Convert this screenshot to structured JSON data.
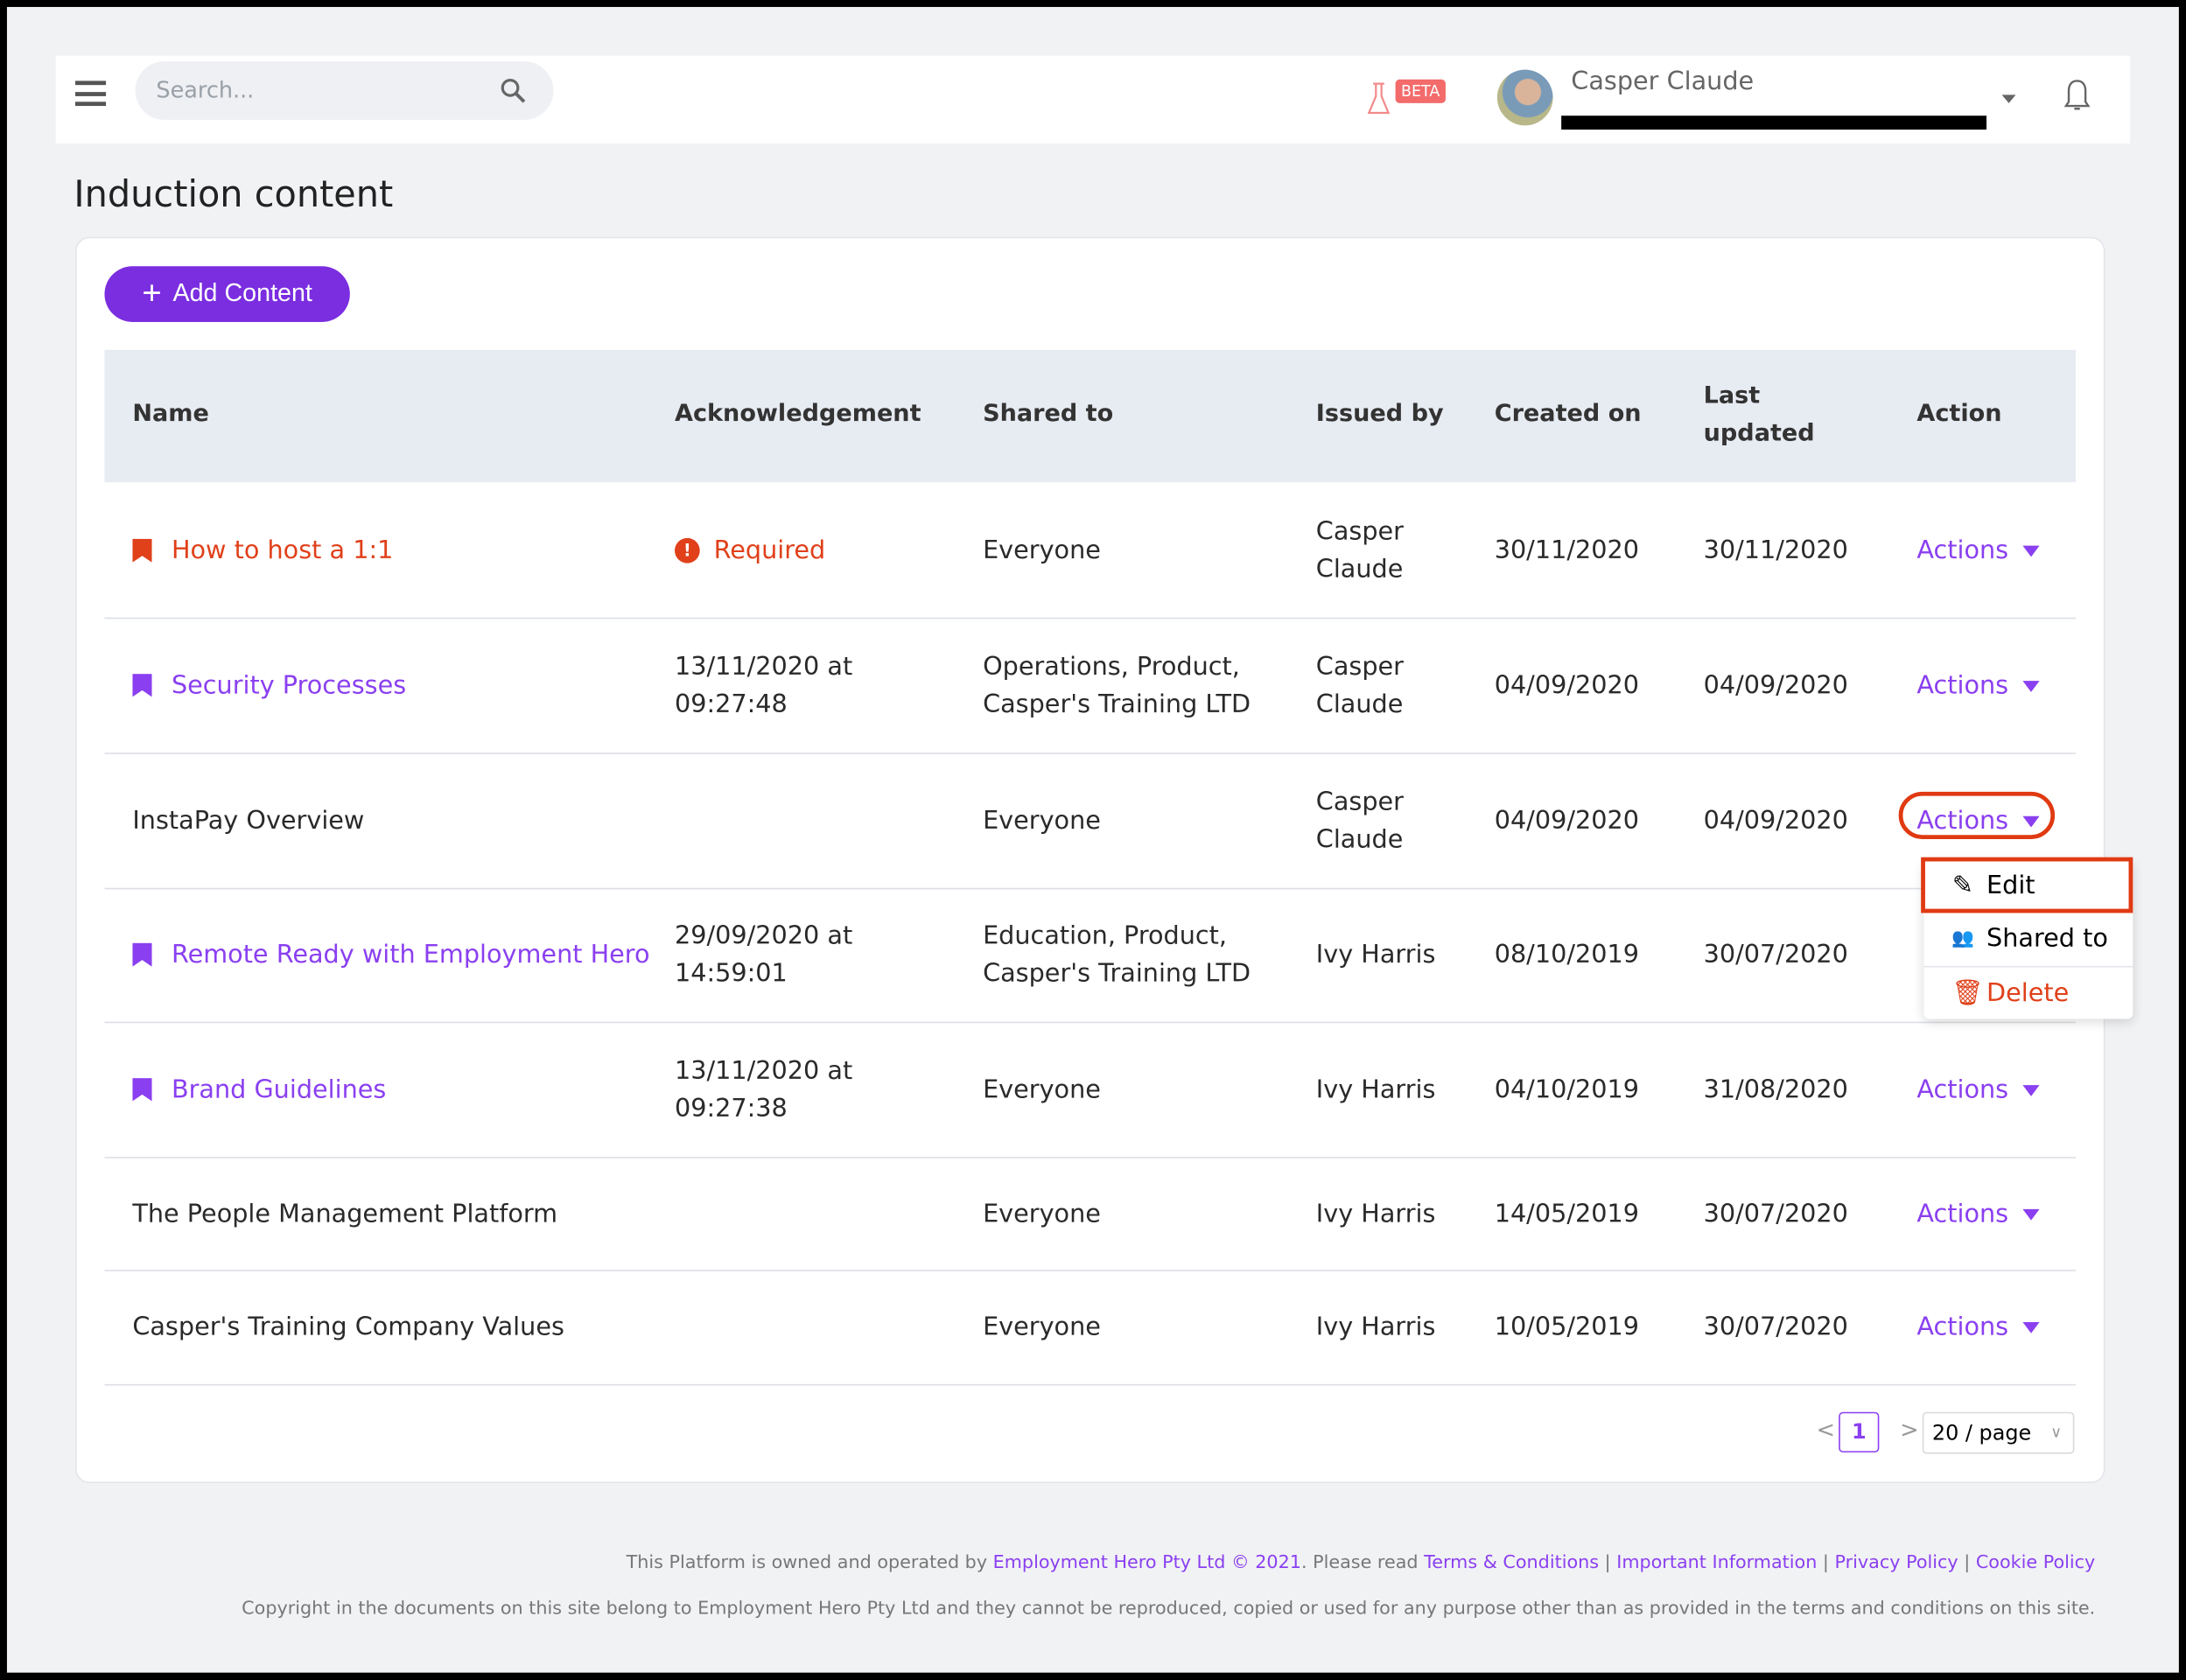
{
  "header": {
    "search_placeholder": "Search...",
    "beta_label": "BETA",
    "user_name": "Casper Claude"
  },
  "page_title": "Induction content",
  "add_button_label": "Add Content",
  "table": {
    "columns": [
      "Name",
      "Acknowledgement",
      "Shared to",
      "Issued by",
      "Created on",
      "Last updated",
      "Action"
    ],
    "rows": [
      {
        "name": "How to host a 1:1",
        "name_style": "required",
        "ack": "Required",
        "ack_style": "required",
        "shared": "Everyone",
        "issued": "Casper Claude",
        "created": "30/11/2020",
        "updated": "30/11/2020",
        "action": "Actions"
      },
      {
        "name": "Security Processes",
        "name_style": "acknowledged",
        "ack": "13/11/2020 at 09:27:48",
        "ack_style": "date",
        "shared": "Operations, Product, Casper's Training LTD",
        "issued": "Casper Claude",
        "created": "04/09/2020",
        "updated": "04/09/2020",
        "action": "Actions"
      },
      {
        "name": "InstaPay Overview",
        "name_style": "plain",
        "ack": "",
        "ack_style": "none",
        "shared": "Everyone",
        "issued": "Casper Claude",
        "created": "04/09/2020",
        "updated": "04/09/2020",
        "action": "Actions"
      },
      {
        "name": "Remote Ready with Employment Hero",
        "name_style": "acknowledged",
        "ack": "29/09/2020 at 14:59:01",
        "ack_style": "date",
        "shared": "Education, Product, Casper's Training LTD",
        "issued": "Ivy Harris",
        "created": "08/10/2019",
        "updated": "30/07/2020",
        "action": ""
      },
      {
        "name": "Brand Guidelines",
        "name_style": "acknowledged",
        "ack": "13/11/2020 at 09:27:38",
        "ack_style": "date",
        "shared": "Everyone",
        "issued": "Ivy Harris",
        "created": "04/10/2019",
        "updated": "31/08/2020",
        "action": "Actions"
      },
      {
        "name": "The People Management Platform",
        "name_style": "plain",
        "ack": "",
        "ack_style": "none",
        "shared": "Everyone",
        "issued": "Ivy Harris",
        "created": "14/05/2019",
        "updated": "30/07/2020",
        "action": "Actions"
      },
      {
        "name": "Casper's Training Company Values",
        "name_style": "plain",
        "ack": "",
        "ack_style": "none",
        "shared": "Everyone",
        "issued": "Ivy Harris",
        "created": "10/05/2019",
        "updated": "30/07/2020",
        "action": "Actions"
      }
    ]
  },
  "action_menu": {
    "items": [
      {
        "label": "Edit",
        "icon": "pencil-icon"
      },
      {
        "label": "Shared to",
        "icon": "people-icon"
      },
      {
        "label": "Delete",
        "icon": "trash-icon"
      }
    ]
  },
  "pagination": {
    "current_page": "1",
    "page_size": "20 / page"
  },
  "footer": {
    "line1_prefix": "This Platform is owned and operated by ",
    "company_link": "Employment Hero Pty Ltd © 2021",
    "line1_mid": ". Please read ",
    "links": [
      "Terms & Conditions",
      "Important Information",
      "Privacy Policy",
      "Cookie Policy"
    ],
    "line2": "Copyright in the documents on this site belong to Employment Hero Pty Ltd and they cannot be reproduced, copied or used for any purpose other than as provided in the terms and conditions on this site."
  },
  "colors": {
    "brand": "#7b2ee0",
    "link": "#8a3ff0",
    "danger": "#e0401a",
    "highlight": "#e03a12"
  }
}
